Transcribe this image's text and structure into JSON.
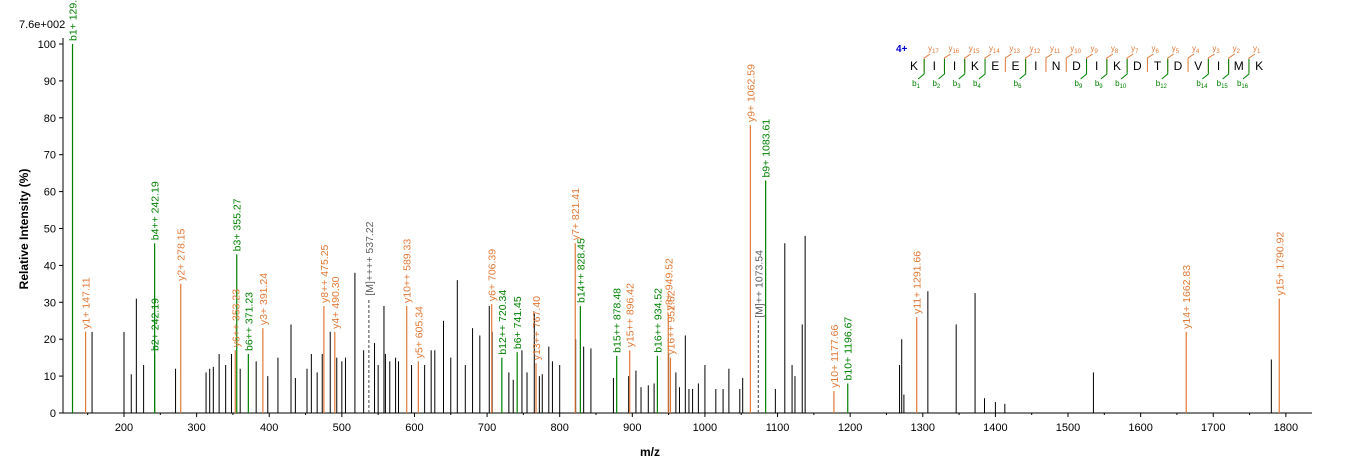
{
  "chart_data": {
    "type": "bar",
    "scale_label": "7.6e+002",
    "xlabel": "m/z",
    "ylabel": "Relative   Intensity (%)",
    "xlim": [
      116,
      1836
    ],
    "ylim": [
      0,
      100
    ],
    "x_ticks": [
      200,
      300,
      400,
      500,
      600,
      700,
      800,
      900,
      1000,
      1100,
      1200,
      1300,
      1400,
      1500,
      1600,
      1700,
      1800
    ],
    "y_ticks": [
      0,
      10,
      20,
      30,
      40,
      50,
      60,
      70,
      80,
      90,
      100
    ],
    "colors": {
      "b_ion": "#008000",
      "y_ion": "#e07a38",
      "other": "#000000",
      "annot": "#606060",
      "charge": "#0000cc"
    },
    "peaks_other": [
      [
        156,
        22
      ],
      [
        200,
        22
      ],
      [
        210,
        10.5
      ],
      [
        217,
        31
      ],
      [
        227,
        13
      ],
      [
        271,
        12
      ],
      [
        313,
        11
      ],
      [
        318,
        12
      ],
      [
        323,
        12.5
      ],
      [
        331,
        16
      ],
      [
        340,
        13
      ],
      [
        348,
        16
      ],
      [
        360,
        12
      ],
      [
        382,
        14
      ],
      [
        398,
        10
      ],
      [
        412,
        15
      ],
      [
        430,
        24
      ],
      [
        436,
        9.5
      ],
      [
        452,
        12
      ],
      [
        458,
        16
      ],
      [
        466,
        11
      ],
      [
        473,
        16
      ],
      [
        484,
        22
      ],
      [
        493,
        15
      ],
      [
        500,
        14
      ],
      [
        505,
        15
      ],
      [
        518,
        38
      ],
      [
        530,
        17
      ],
      [
        545,
        19
      ],
      [
        550,
        13
      ],
      [
        558,
        29
      ],
      [
        560,
        16
      ],
      [
        566,
        14
      ],
      [
        574,
        15
      ],
      [
        578,
        14
      ],
      [
        596,
        13
      ],
      [
        614,
        13
      ],
      [
        623,
        17
      ],
      [
        628,
        17
      ],
      [
        640,
        25
      ],
      [
        650,
        15
      ],
      [
        659,
        36
      ],
      [
        670,
        13
      ],
      [
        680,
        23
      ],
      [
        690,
        21
      ],
      [
        703,
        29
      ],
      [
        707,
        22
      ],
      [
        730,
        11
      ],
      [
        736,
        9
      ],
      [
        748,
        17
      ],
      [
        755,
        11
      ],
      [
        765,
        27
      ],
      [
        772,
        10
      ],
      [
        776,
        10.5
      ],
      [
        785,
        18
      ],
      [
        790,
        14
      ],
      [
        800,
        13
      ],
      [
        822,
        20
      ],
      [
        833,
        18
      ],
      [
        843,
        17.5
      ],
      [
        874,
        9.5
      ],
      [
        895,
        10
      ],
      [
        905,
        11.5
      ],
      [
        912,
        7
      ],
      [
        922,
        7.5
      ],
      [
        930,
        8
      ],
      [
        950,
        16
      ],
      [
        960,
        11
      ],
      [
        965,
        7
      ],
      [
        973,
        21
      ],
      [
        978,
        6.5
      ],
      [
        983,
        6.5
      ],
      [
        991,
        8
      ],
      [
        1000,
        13
      ],
      [
        1015,
        6.5
      ],
      [
        1025,
        6.5
      ],
      [
        1033,
        12
      ],
      [
        1048,
        6.5
      ],
      [
        1052,
        9.5
      ],
      [
        1097,
        6.5
      ],
      [
        1110,
        46
      ],
      [
        1120,
        13
      ],
      [
        1124,
        10
      ],
      [
        1134,
        24
      ],
      [
        1138,
        48
      ],
      [
        1268,
        13
      ],
      [
        1271,
        20
      ],
      [
        1274,
        5
      ],
      [
        1307,
        33
      ],
      [
        1346,
        24
      ],
      [
        1372,
        32.5
      ],
      [
        1385,
        4
      ],
      [
        1400,
        3
      ],
      [
        1413,
        2.5
      ],
      [
        1535,
        11
      ],
      [
        1780,
        14.5
      ]
    ],
    "peaks_b": [
      [
        129.1,
        100,
        "b1+ 129.1"
      ],
      [
        242.19,
        16,
        "b2+ 242.19"
      ],
      [
        242.19,
        46,
        "b4++ 242.19"
      ],
      [
        355.27,
        43,
        "b3+ 355.27"
      ],
      [
        371.23,
        16,
        "b6++ 371.23"
      ],
      [
        720.34,
        15,
        "b12++ 720.34"
      ],
      [
        741.45,
        16.5,
        "b6+ 741.45"
      ],
      [
        828.45,
        29,
        "b14++ 828.45"
      ],
      [
        878.48,
        15.5,
        "b15++ 878.48"
      ],
      [
        934.52,
        15.5,
        "b16++ 934.52"
      ],
      [
        1083.61,
        63,
        "b9+ 1083.61"
      ],
      [
        1196.67,
        8,
        "b10+ 1196.67"
      ]
    ],
    "peaks_y": [
      [
        147.11,
        22,
        "y1+ 147.11"
      ],
      [
        278.15,
        35,
        "y2+ 278.15"
      ],
      [
        353.23,
        17,
        "y6++ 353.23"
      ],
      [
        391.24,
        23,
        "y3+ 391.24"
      ],
      [
        475.25,
        29,
        "y8++ 475.25"
      ],
      [
        490.3,
        22,
        "y4+ 490.30"
      ],
      [
        589.33,
        29,
        "y10++ 589.33"
      ],
      [
        605.34,
        14,
        "y5+ 605.34"
      ],
      [
        706.39,
        29.5,
        "y6+ 706.39"
      ],
      [
        767.4,
        13.5,
        "y13++ 767.40"
      ],
      [
        821.41,
        46,
        "y7+ 821.41"
      ],
      [
        896.42,
        17,
        "y15++ 896.42"
      ],
      [
        949.52,
        27,
        "y8+ 949.52"
      ],
      [
        952.52,
        15,
        "y16++ 952.52"
      ],
      [
        1062.59,
        78,
        "y9+ 1062.59"
      ],
      [
        1177.66,
        6,
        "y10+ 1177.66"
      ],
      [
        1291.66,
        26,
        "y11+ 1291.66"
      ],
      [
        1662.83,
        22,
        "y14+ 1662.83"
      ],
      [
        1790.92,
        31,
        "y15+ 1790.92"
      ]
    ],
    "peaks_annot": [
      [
        537.22,
        31,
        "[M]++++ 537.22"
      ],
      [
        1073.54,
        25,
        "[M]++ 1073.54"
      ]
    ],
    "peptide": {
      "charge": "4+",
      "residues": [
        "K",
        "I",
        "I",
        "K",
        "E",
        "E",
        "I",
        "N",
        "D",
        "I",
        "K",
        "D",
        "T",
        "D",
        "V",
        "I",
        "M",
        "K"
      ],
      "y_labels": [
        "y17",
        "y16",
        "y15",
        "y14",
        "y13",
        "y12",
        "y11",
        "y10",
        "y9",
        "y8",
        "y7",
        "y6",
        "y5",
        "y4",
        "y3",
        "y2",
        "y1"
      ],
      "y_positions": [
        1,
        2,
        3,
        4,
        5,
        6,
        7,
        8,
        9,
        10,
        11,
        12,
        13,
        14,
        15,
        16,
        17
      ],
      "b_labels": [
        "b1",
        "b2",
        "b3",
        "b4",
        "b6",
        "b9",
        "b9",
        "b10",
        "b12",
        "b14",
        "b15",
        "b16"
      ],
      "b_positions": [
        1,
        2,
        3,
        4,
        6,
        9,
        10,
        11,
        13,
        15,
        16,
        17
      ]
    }
  }
}
